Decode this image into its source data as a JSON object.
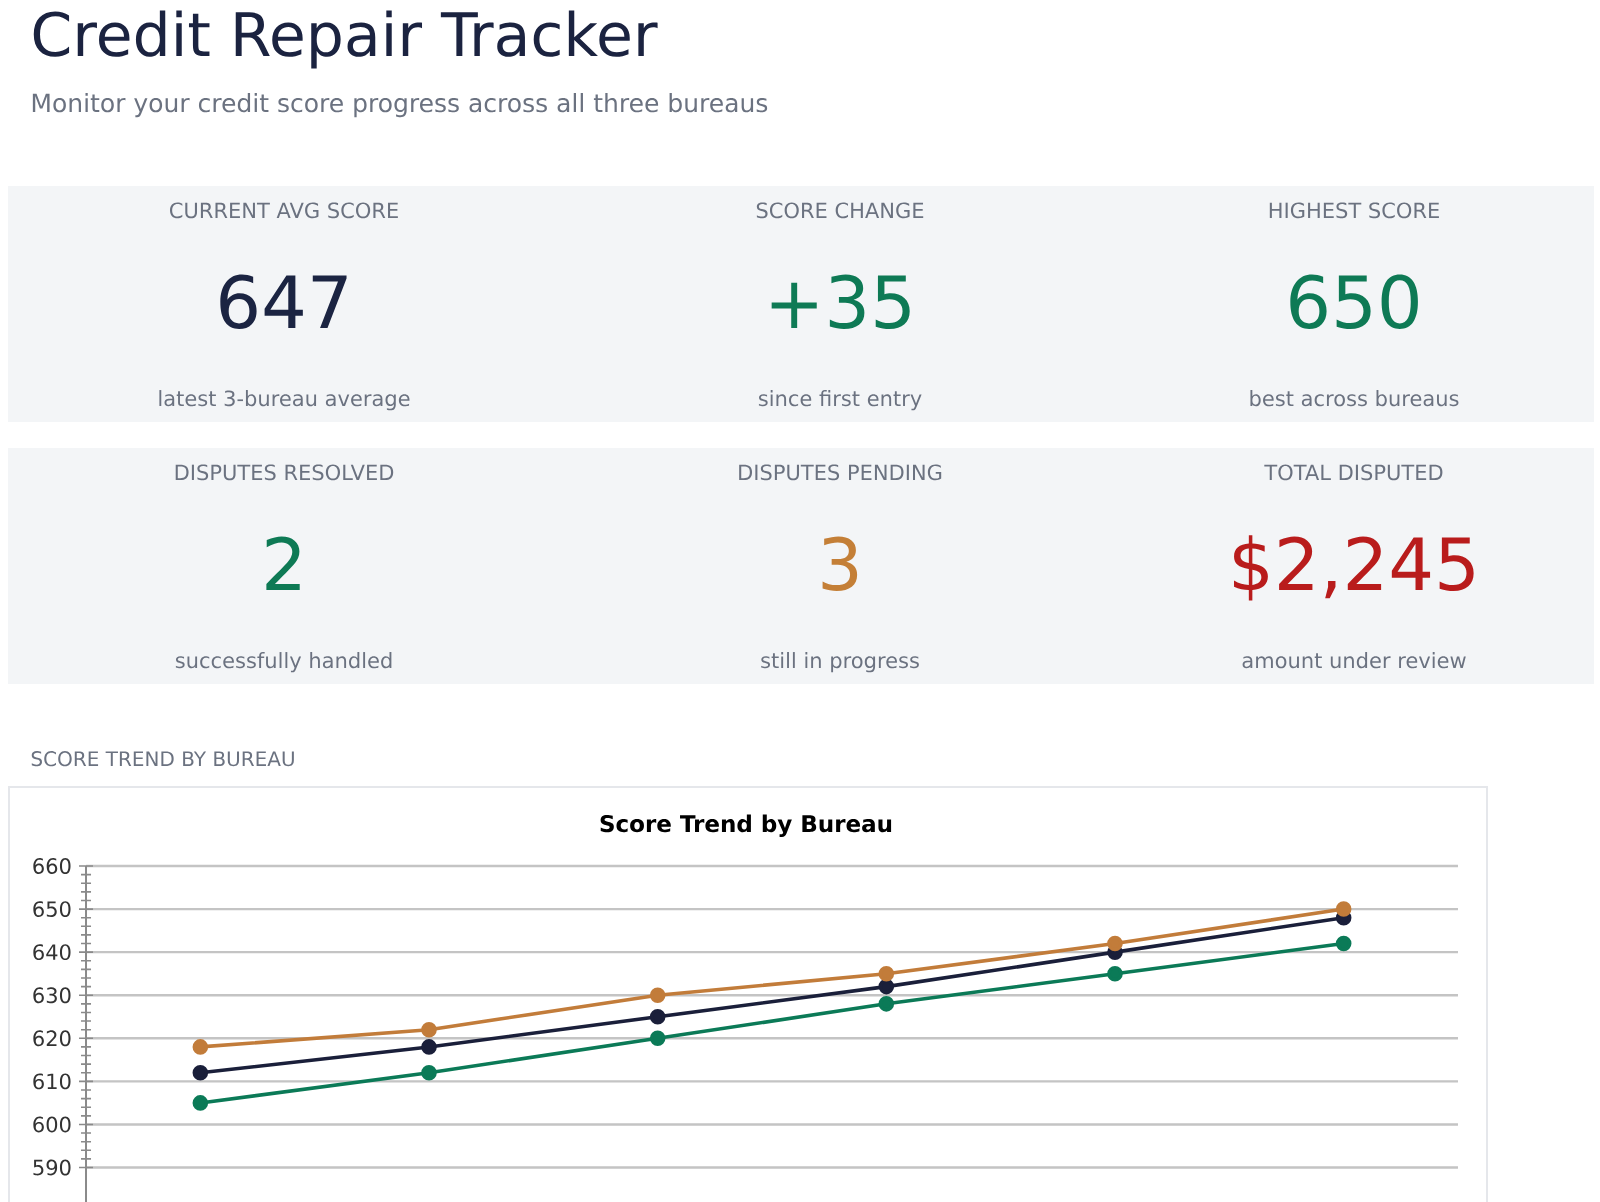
{
  "chart_data": [
    {
      "type": "other",
      "title": "Credit Repair Tracker",
      "subtitle": "Monitor your credit score progress across all three bureaus",
      "categories": [
        "CURRENT AVG SCORE",
        "SCORE CHANGE",
        "HIGHEST SCORE",
        "DISPUTES RESOLVED",
        "DISPUTES PENDING",
        "TOTAL DISPUTED"
      ],
      "value_labels": [
        "647",
        "+35",
        "650",
        "2",
        "3",
        "$2,245"
      ],
      "annotations": [
        "latest 3-bureau average",
        "since first entry",
        "best across bureaus",
        "successfully handled",
        "still in progress",
        "amount under review"
      ]
    },
    {
      "type": "line",
      "title": "Score Trend by Bureau",
      "annotations": [
        "SCORE TREND BY BUREAU"
      ],
      "categories": [
        null,
        null,
        null,
        null,
        null,
        null
      ],
      "series": [
        {
          "color": "#0b7a57",
          "values": [
            605,
            612,
            620,
            628,
            635,
            642
          ]
        },
        {
          "color": "#1a1f3a",
          "values": [
            612,
            618,
            625,
            632,
            640,
            648
          ]
        },
        {
          "color": "#c27c3a",
          "values": [
            618,
            622,
            630,
            635,
            642,
            650
          ]
        }
      ],
      "ylim": [
        582,
        660
      ],
      "yticks": [
        590,
        600,
        610,
        620,
        630,
        640,
        650,
        660
      ],
      "grid": "y",
      "marker": "circle",
      "line_style": "solid"
    }
  ]
}
